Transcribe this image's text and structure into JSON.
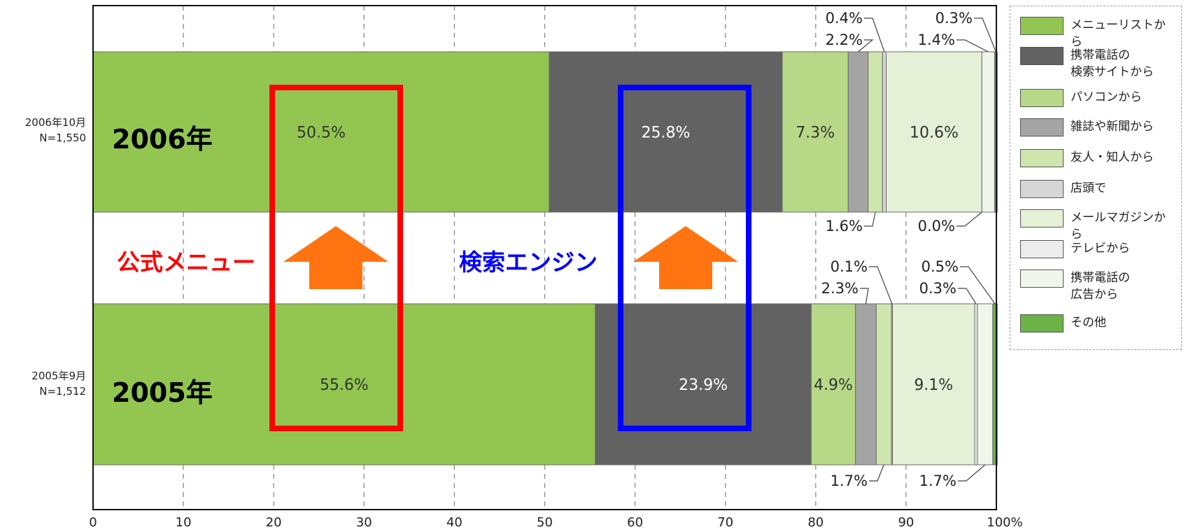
{
  "chart_data": {
    "type": "bar",
    "orientation": "horizontal-stacked",
    "x_ticks": [
      "0",
      "10",
      "20",
      "30",
      "40",
      "50",
      "60",
      "70",
      "80",
      "90",
      "100%"
    ],
    "xlim": [
      0,
      100
    ],
    "grid": "vertical dashed",
    "legend_position": "right",
    "categories": [
      {
        "label_line1": "2006年10月",
        "label_line2": "N=1,550",
        "year_label": "2006年"
      },
      {
        "label_line1": "2005年9月",
        "label_line2": "N=1,512",
        "year_label": "2005年"
      }
    ],
    "series": [
      {
        "name": "メニューリストから",
        "color": "#92c650",
        "values": [
          50.5,
          55.6
        ],
        "labels": [
          "50.5%",
          "55.6%"
        ],
        "label_color": "#333333"
      },
      {
        "name": "携帯電話の検索サイトから",
        "color": "#626262",
        "values": [
          25.8,
          23.9
        ],
        "labels": [
          "25.8%",
          "23.9%"
        ],
        "label_color": "#ffffff"
      },
      {
        "name": "パソコンから",
        "color": "#b7d987",
        "values": [
          7.3,
          4.9
        ],
        "labels": [
          "7.3%",
          "4.9%"
        ],
        "label_color": "#333333"
      },
      {
        "name": "雑誌や新聞から",
        "color": "#a4a4a4",
        "values": [
          2.2,
          2.3
        ],
        "labels": [
          "2.2%",
          "2.3%"
        ]
      },
      {
        "name": "友人・知人から",
        "color": "#cfe5ae",
        "values": [
          1.6,
          1.7
        ],
        "labels": [
          "1.6%",
          "1.7%"
        ]
      },
      {
        "name": "店頭で",
        "color": "#d6d6d6",
        "values": [
          0.4,
          0.1
        ],
        "labels": [
          "0.4%",
          "0.1%"
        ]
      },
      {
        "name": "メールマガジンから",
        "color": "#e5f1d6",
        "values": [
          10.6,
          9.1
        ],
        "labels": [
          "10.6%",
          "9.1%"
        ],
        "label_color": "#333333"
      },
      {
        "name": "テレビから",
        "color": "#ececec",
        "values": [
          0.0,
          0.3
        ],
        "labels": [
          "0.0%",
          "0.3%"
        ]
      },
      {
        "name": "携帯電話の広告から",
        "color": "#f1f6ea",
        "values": [
          1.4,
          1.7
        ],
        "labels": [
          "1.4%",
          "1.7%"
        ]
      },
      {
        "name": "その他",
        "color": "#6ab344",
        "values": [
          0.3,
          0.5
        ],
        "labels": [
          "0.3%",
          "0.5%"
        ]
      }
    ]
  },
  "legend": [
    {
      "line1": "メニューリストから",
      "line2": "",
      "color": "#92c650"
    },
    {
      "line1": "携帯電話の",
      "line2": "検索サイトから",
      "color": "#626262"
    },
    {
      "line1": "パソコンから",
      "line2": "",
      "color": "#b7d987"
    },
    {
      "line1": "雑誌や新聞から",
      "line2": "",
      "color": "#a4a4a4"
    },
    {
      "line1": "友人・知人から",
      "line2": "",
      "color": "#cfe5ae"
    },
    {
      "line1": "店頭で",
      "line2": "",
      "color": "#d6d6d6"
    },
    {
      "line1": "メールマガジンから",
      "line2": "",
      "color": "#e5f1d6"
    },
    {
      "line1": "テレビから",
      "line2": "",
      "color": "#ececec"
    },
    {
      "line1": "携帯電話の",
      "line2": "広告から",
      "color": "#f1f6ea"
    },
    {
      "line1": "その他",
      "line2": "",
      "color": "#6ab344"
    }
  ],
  "annotations": {
    "official_menu": {
      "text": "公式メニュー",
      "color": "#ff0000"
    },
    "search_engine": {
      "text": "検索エンジン",
      "color": "#0000ff"
    },
    "arrow_color": "#ff7410",
    "box1_color": "#ff0000",
    "box2_color": "#0000ff"
  }
}
